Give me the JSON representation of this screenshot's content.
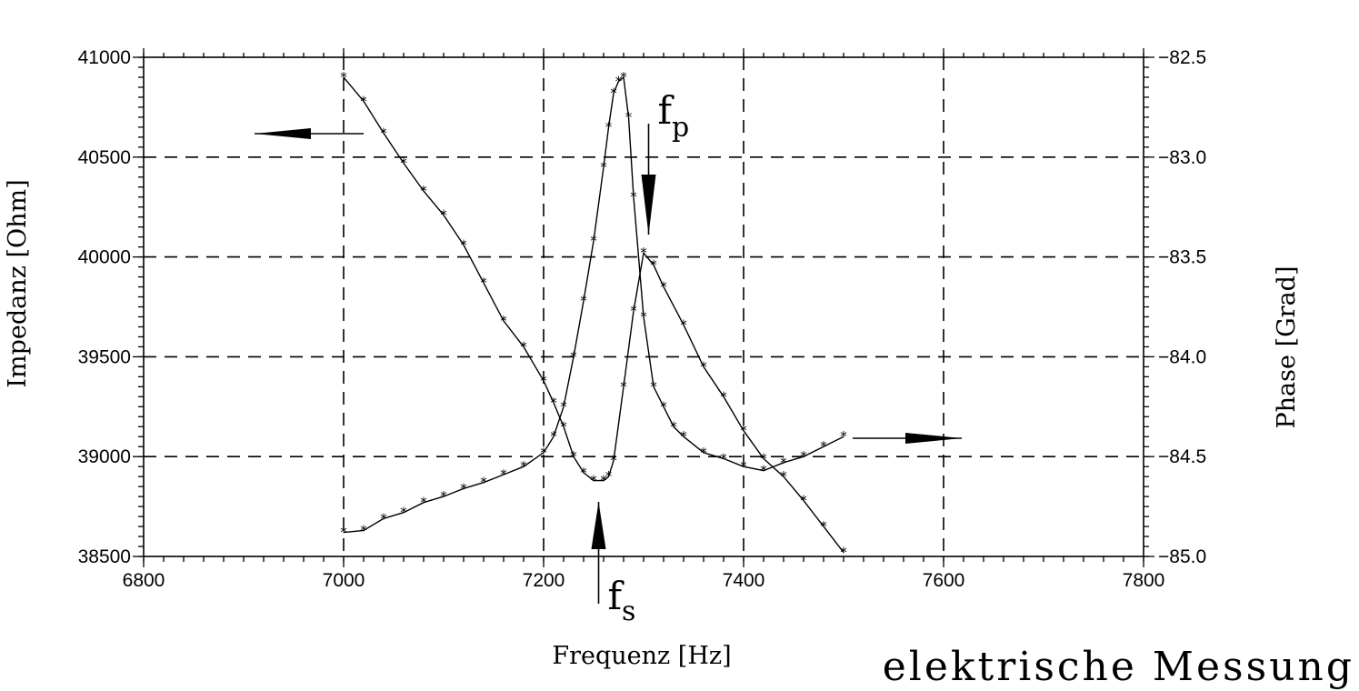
{
  "chart_data": {
    "type": "line",
    "title": "elektrische Messung",
    "xlabel": "Frequenz [Hz]",
    "ylabel_left": "Impedanz [Ohm]",
    "ylabel_right": "Phase [Grad]",
    "xlim": [
      6800,
      7800
    ],
    "ylim_left": [
      38500,
      41000
    ],
    "ylim_right": [
      -85.0,
      -82.5
    ],
    "grid": true,
    "x_ticks": [
      "6800",
      "7000",
      "7200",
      "7400",
      "7600",
      "7800"
    ],
    "y_left_ticks": [
      "38500",
      "39000",
      "39500",
      "40000",
      "40500",
      "41000"
    ],
    "y_right_ticks": [
      "−85.0",
      "−84.5",
      "−84.0",
      "−83.5",
      "−83.0",
      "−82.5"
    ],
    "annotations": {
      "fp": {
        "label": "f",
        "subscript": "p",
        "x": 7305
      },
      "fs": {
        "label": "f",
        "subscript": "s",
        "x": 7255
      }
    },
    "series": [
      {
        "axis": "left",
        "x": [
          7000,
          7020,
          7040,
          7060,
          7080,
          7100,
          7120,
          7140,
          7160,
          7180,
          7200,
          7210,
          7220,
          7230,
          7240,
          7250,
          7260,
          7265,
          7270,
          7280,
          7290,
          7300,
          7310,
          7320,
          7340,
          7360,
          7380,
          7400,
          7420,
          7440,
          7460,
          7480,
          7500
        ],
        "y": [
          40900,
          40780,
          40620,
          40470,
          40330,
          40210,
          40060,
          39870,
          39680,
          39550,
          39380,
          39270,
          39150,
          39000,
          38920,
          38880,
          38880,
          38900,
          38980,
          39350,
          39730,
          40020,
          39960,
          39850,
          39660,
          39450,
          39300,
          39130,
          38990,
          38900,
          38780,
          38650,
          38520
        ]
      },
      {
        "axis": "right",
        "x": [
          7000,
          7020,
          7040,
          7060,
          7080,
          7100,
          7120,
          7140,
          7160,
          7180,
          7200,
          7210,
          7220,
          7230,
          7240,
          7250,
          7260,
          7265,
          7270,
          7275,
          7280,
          7285,
          7290,
          7300,
          7310,
          7320,
          7330,
          7340,
          7360,
          7380,
          7400,
          7420,
          7440,
          7460,
          7480,
          7500
        ],
        "y": [
          -84.88,
          -84.87,
          -84.81,
          -84.78,
          -84.73,
          -84.7,
          -84.66,
          -84.63,
          -84.59,
          -84.55,
          -84.48,
          -84.4,
          -84.25,
          -84.0,
          -83.72,
          -83.42,
          -83.05,
          -82.85,
          -82.68,
          -82.62,
          -82.6,
          -82.8,
          -83.2,
          -83.8,
          -84.15,
          -84.25,
          -84.35,
          -84.4,
          -84.48,
          -84.51,
          -84.55,
          -84.57,
          -84.53,
          -84.5,
          -84.45,
          -84.4
        ]
      }
    ]
  }
}
